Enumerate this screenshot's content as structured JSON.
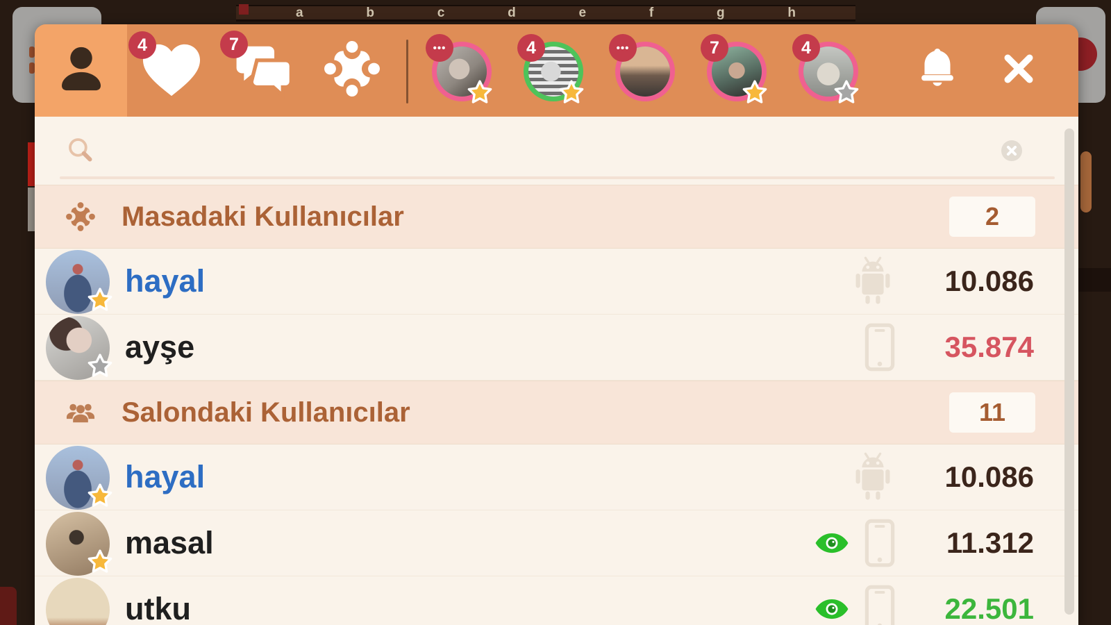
{
  "board": {
    "letters": [
      "a",
      "b",
      "c",
      "d",
      "e",
      "f",
      "g",
      "h"
    ]
  },
  "header": {
    "tabs": {
      "profile": {
        "icon": "person-icon",
        "selected": true
      },
      "favorites": {
        "icon": "heart-icon",
        "badge": "4"
      },
      "messages": {
        "icon": "chat-icon",
        "badge": "7"
      },
      "tables": {
        "icon": "game-table-icon"
      }
    },
    "friends": [
      {
        "badge": "•••",
        "ring_color": "#f06090",
        "star": "gold"
      },
      {
        "badge": "4",
        "ring_color": "#4ec35a",
        "star": "gold"
      },
      {
        "badge": "•••",
        "ring_color": "#f06090",
        "star": "none"
      },
      {
        "badge": "7",
        "ring_color": "#f06090",
        "star": "gold"
      },
      {
        "badge": "4",
        "ring_color": "#f06090",
        "star": "gray"
      }
    ]
  },
  "search": {
    "value": "",
    "placeholder": ""
  },
  "sections": [
    {
      "title": "Masadaki Kullanıcılar",
      "icon": "game-table-icon",
      "count": "2",
      "users": [
        {
          "name": "hayal",
          "name_color": "#2d6dc3",
          "star": "gold",
          "watching": false,
          "device": "android",
          "score": "10.086",
          "score_color": "#3b251b",
          "avatar": "hayal"
        },
        {
          "name": "ayşe",
          "name_color": "#1f1f1f",
          "star": "gray",
          "watching": false,
          "device": "phone",
          "score": "35.874",
          "score_color": "#d65560",
          "avatar": "ayse"
        }
      ]
    },
    {
      "title": "Salondaki Kullanıcılar",
      "icon": "people-icon",
      "count": "11",
      "users": [
        {
          "name": "hayal",
          "name_color": "#2d6dc3",
          "star": "gold",
          "watching": false,
          "device": "android",
          "score": "10.086",
          "score_color": "#3b251b",
          "avatar": "hayal"
        },
        {
          "name": "masal",
          "name_color": "#1f1f1f",
          "star": "gold",
          "watching": true,
          "device": "phone",
          "score": "11.312",
          "score_color": "#3b251b",
          "avatar": "masal"
        },
        {
          "name": "utku",
          "name_color": "#1f1f1f",
          "star": "none",
          "watching": true,
          "device": "phone",
          "score": "22.501",
          "score_color": "#3cb63c",
          "avatar": "utku"
        }
      ]
    }
  ],
  "colors": {
    "header_orange": "#df8d56",
    "selected_tab": "#f3a468",
    "badge_red": "#c43b4b",
    "ring_pink": "#f06090",
    "ring_green": "#4ec35a",
    "star_gold": "#f7b83b",
    "star_gray": "#a5a5a5",
    "body_bg": "#faf3ea",
    "section_bg": "#f8e5d8",
    "section_text": "#ab6236",
    "name_blue": "#2d6dc3",
    "score_dark": "#3b251b",
    "score_red": "#d65560",
    "score_green": "#3cb63c",
    "eye_green": "#2abf2a"
  }
}
